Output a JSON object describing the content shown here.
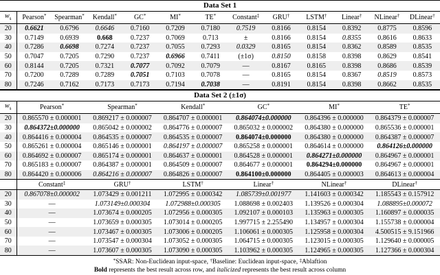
{
  "sections": [
    {
      "title": "Data Set 1",
      "blocks": [
        {
          "header": [
            {
              "name": "w",
              "sub": "s"
            },
            {
              "name": "Pearson",
              "sup": "*"
            },
            {
              "name": "Spearman",
              "sup": "*"
            },
            {
              "name": "Kendall",
              "sup": "*"
            },
            {
              "name": "GC",
              "sup": "*"
            },
            {
              "name": "MI",
              "sup": "*"
            },
            {
              "name": "TE",
              "sup": "*"
            },
            {
              "name": "Constant",
              "sup": "‡"
            },
            {
              "name": "GRU",
              "sup": "†"
            },
            {
              "name": "LSTM",
              "sup": "†"
            },
            {
              "name": "Linear",
              "sup": "†"
            },
            {
              "name": "NLinear",
              "sup": "†"
            },
            {
              "name": "DLinear",
              "sup": "†"
            }
          ],
          "rows": [
            [
              "20",
              {
                "text": "0.6621",
                "style": "bold-italic"
              },
              "0.6796",
              {
                "text": "0.6646",
                "style": "italic"
              },
              "0.7160",
              "0.7209",
              "0.7180",
              {
                "text": "0.7519",
                "style": "italic"
              },
              "0.8166",
              "0.8154",
              "0.8392",
              "0.8775",
              "0.8596"
            ],
            [
              "30",
              "0.7149",
              "0.6939",
              {
                "text": "0.668",
                "style": "bold"
              },
              "0.7237",
              "0.7069",
              "0.713",
              "±",
              "0.8166",
              "0.8154",
              {
                "text": "0.8355",
                "style": "italic"
              },
              "0.8616",
              "0.8633"
            ],
            [
              "40",
              "0.7286",
              {
                "text": "0.6698",
                "style": "bold-italic"
              },
              "0.7274",
              "0.7237",
              "0.7055",
              "0.7293",
              {
                "text": "0.0329",
                "style": "italic"
              },
              "0.8165",
              "0.8154",
              "0.8362",
              "0.8589",
              "0.8535"
            ],
            [
              "50",
              "0.7047",
              "0.7205",
              "0.7290",
              "0.7237",
              {
                "text": "0.6966",
                "style": "bold-italic"
              },
              "0.7411",
              "(±1σ)",
              {
                "text": "0.8150",
                "style": "italic"
              },
              "0.8158",
              "0.8398",
              "0.8629",
              "0.8541"
            ],
            [
              "60",
              "0.8144",
              "0.7205",
              "0.7321",
              {
                "text": "0.7077",
                "style": "bold-italic"
              },
              "0.7092",
              "0.7079",
              "—",
              "0.8167",
              "0.8165",
              "0.8398",
              "0.8686",
              "0.8539"
            ],
            [
              "70",
              "0.7200",
              "0.7289",
              "0.7289",
              {
                "text": "0.7051",
                "style": "bold-italic"
              },
              "0.7103",
              "0.7078",
              "—",
              "0.8165",
              "0.8154",
              "0.8367",
              {
                "text": "0.8519",
                "style": "italic"
              },
              "0.8573"
            ],
            [
              "80",
              "0.7246",
              "0.7162",
              "0.7173",
              "0.7173",
              "0.7194",
              {
                "text": "0.7038",
                "style": "bold-italic"
              },
              "—",
              "0.8191",
              "0.8154",
              "0.8398",
              "0.8662",
              "0.8535"
            ]
          ]
        }
      ]
    },
    {
      "title": "Data Set 2 (±1σ)",
      "blocks": [
        {
          "header": [
            {
              "name": "w",
              "sub": "s"
            },
            {
              "name": "Pearson",
              "sup": "*"
            },
            {
              "name": "Spearman",
              "sup": "*"
            },
            {
              "name": "Kendall",
              "sup": "*"
            },
            {
              "name": "GC",
              "sup": "*"
            },
            {
              "name": "MI",
              "sup": "*"
            },
            {
              "name": "TE",
              "sup": "*"
            }
          ],
          "rows": [
            [
              "20",
              "0.865570 ± 0.000001",
              "0.869217 ± 0.000007",
              "0.864707 ± 0.000001",
              {
                "text": "0.864074±0.000000",
                "style": "bold-italic"
              },
              "0.864396 ± 0.000000",
              "0.864379 ± 0.000007"
            ],
            [
              "30",
              {
                "text": "0.864372±0.000000",
                "style": "bold-italic"
              },
              "0.865042 ± 0.000002",
              "0.864776 ± 0.000007",
              "0.865032 ± 0.000002",
              "0.864380 ± 0.000000",
              "0.865536 ± 0.000001"
            ],
            [
              "40",
              "0.864416 ± 0.000004",
              "0.864535 ± 0.000007",
              "0.864535 ± 0.000007",
              {
                "text": "0.864074±0.000000",
                "style": "bold"
              },
              "0.864380 ± 0.000000",
              "0.864387 ± 0.000007"
            ],
            [
              "50",
              "0.865261 ± 0.000004",
              "0.865146 ± 0.000001",
              {
                "text": "0.864197 ± 0.000007",
                "style": "italic"
              },
              "0.865258 ± 0.000001",
              "0.864614 ± 0.000000",
              {
                "text": "0.864126±0.000000",
                "style": "bold-italic"
              }
            ],
            [
              "60",
              "0.864692 ± 0.000007",
              "0.865174 ± 0.000001",
              "0.864637 ± 0.000001",
              "0.864528 ± 0.000001",
              {
                "text": "0.864271±0.000000",
                "style": "bold-italic"
              },
              "0.864967 ± 0.000001"
            ],
            [
              "70",
              "0.865183 ± 0.000007",
              "0.864387 ± 0.000001",
              "0.864509 ± 0.000007",
              "0.864677 ± 0.000001",
              {
                "text": "0.864294±0.000000",
                "style": "bold"
              },
              "0.864967 ± 0.000001"
            ],
            [
              "80",
              "0.864420 ± 0.000006",
              {
                "text": "0.864216 ± 0.000007",
                "style": "italic"
              },
              "0.864826 ± 0.000007",
              {
                "text": "0.864100±0.000000",
                "style": "bold"
              },
              "0.864405 ± 0.000003",
              "0.864613 ± 0.000004"
            ]
          ]
        },
        {
          "header": [
            {
              "name": "Constant",
              "sup": "‡"
            },
            {
              "name": "GRU",
              "sup": "†"
            },
            {
              "name": "LSTM",
              "sup": "†"
            },
            {
              "name": "Linear",
              "sup": "†"
            },
            {
              "name": "NLinear",
              "sup": "†"
            },
            {
              "name": "DLinear",
              "sup": "†"
            }
          ],
          "rows": [
            [
              "20",
              {
                "text": "0.867078±0.000002",
                "style": "italic"
              },
              "1.073429 ± 0.001211",
              "1.072995 ± 0.000342",
              {
                "text": "1.085739±0.001977",
                "style": "italic"
              },
              "1.141603 ± 0.000342",
              "1.185543 ± 0.157912"
            ],
            [
              "30",
              "—",
              {
                "text": "1.073149±0.000304",
                "style": "italic"
              },
              {
                "text": "1.072988±0.000305",
                "style": "italic"
              },
              "1.088698 ± 0.002403",
              "1.139526 ± 0.000304",
              {
                "text": "1.088895±0.000072",
                "style": "italic"
              }
            ],
            [
              "40",
              "—",
              "1.073674 ± 0.000205",
              "1.072956 ± 0.000305",
              "1.092107 ± 0.000103",
              "1.135963 ± 0.000305",
              "1.160897 ± 0.000035"
            ],
            [
              "50",
              "—",
              "1.073659 ± 0.000305",
              "1.073014 ± 0.000205",
              "1.997715 ± 2.255490",
              "1.134957 ± 0.000304",
              "1.155738 ± 0.000004"
            ],
            [
              "60",
              "—",
              "1.073467 ± 0.000305",
              "1.073006 ± 0.000205",
              "1.106061 ± 0.000305",
              "1.125958 ± 0.000304",
              "4.500515 ± 9.151966"
            ],
            [
              "70",
              "—",
              "1.073547 ± 0.000304",
              "1.073052 ± 0.000305",
              "1.064715 ± 0.000305",
              "1.123015 ± 0.000305",
              "1.129640 ± 0.000005"
            ],
            [
              "80",
              "—",
              "1.073607 ± 0.000305",
              "1.073090 ± 0.000305",
              "1.103962 ± 0.000305",
              "1.124965 ± 0.000305",
              "1.127366 ± 0.000304"
            ]
          ]
        }
      ]
    }
  ],
  "footnotes": [
    [
      {
        "text": "*",
        "style": "sup"
      },
      {
        "text": "SSAR: Non-Euclidean input-space, "
      },
      {
        "text": "†",
        "style": "sup"
      },
      {
        "text": "Baseline: Euclidean input-space, "
      },
      {
        "text": "‡",
        "style": "sup"
      },
      {
        "text": "Ablaftion"
      }
    ],
    [
      {
        "text": "Bold",
        "style": "bold"
      },
      {
        "text": " represents the best result across row, and "
      },
      {
        "text": "italicized",
        "style": "italic"
      },
      {
        "text": " represents the best result across column"
      }
    ]
  ]
}
